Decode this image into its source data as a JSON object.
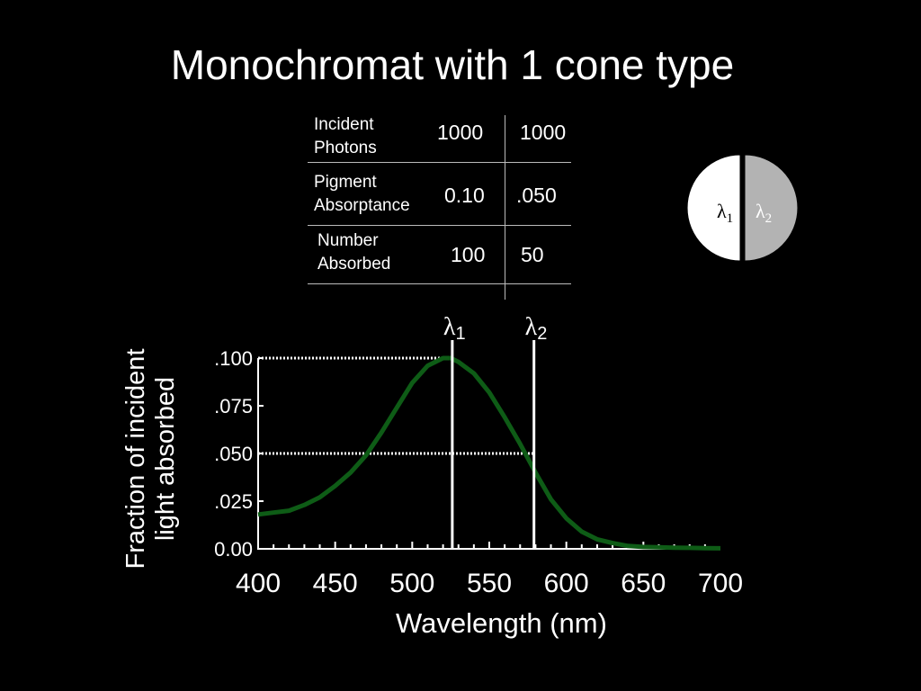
{
  "title": "Monochromat with 1 cone type",
  "table": {
    "rows": [
      {
        "label_line1": "Incident",
        "label_line2": "Photons",
        "v1": "1000",
        "v2": "1000"
      },
      {
        "label_line1": "Pigment",
        "label_line2": "Absorptance",
        "v1": "0.10",
        "v2": ".050"
      },
      {
        "label_line1": "Number",
        "label_line2": "Absorbed",
        "v1": "100",
        "v2": "50"
      }
    ]
  },
  "disk": {
    "left_label": "λ1",
    "right_label": "λ2",
    "left_color": "#ffffff",
    "right_color": "#b3b3b3"
  },
  "chart_data": {
    "type": "line",
    "xlabel": "Wavelength (nm)",
    "ylabel": "Fraction of incident light absorbed",
    "xlim": [
      400,
      700
    ],
    "ylim": [
      0,
      0.1
    ],
    "x_ticks": [
      "400",
      "450",
      "500",
      "550",
      "600",
      "650",
      "700"
    ],
    "y_ticks": [
      ".100",
      ".075",
      ".050",
      ".025",
      "0.00"
    ],
    "series": [
      {
        "color": "#0e5c16",
        "x": [
          400,
          410,
          420,
          430,
          440,
          450,
          460,
          470,
          480,
          490,
          500,
          510,
          520,
          525,
          530,
          540,
          550,
          560,
          570,
          580,
          590,
          600,
          610,
          620,
          630,
          640,
          650,
          660,
          670,
          680,
          690,
          700
        ],
        "y": [
          0.018,
          0.019,
          0.02,
          0.023,
          0.027,
          0.033,
          0.04,
          0.049,
          0.061,
          0.074,
          0.087,
          0.096,
          0.1,
          0.1,
          0.098,
          0.092,
          0.082,
          0.069,
          0.055,
          0.04,
          0.026,
          0.016,
          0.009,
          0.005,
          0.003,
          0.0015,
          0.001,
          0.0008,
          0.0006,
          0.0005,
          0.0004,
          0.0003
        ]
      }
    ],
    "markers": [
      {
        "label": "λ1",
        "x": 526,
        "y_level": 0.1
      },
      {
        "label": "λ2",
        "x": 579,
        "y_level": 0.05
      }
    ],
    "grid": false
  }
}
